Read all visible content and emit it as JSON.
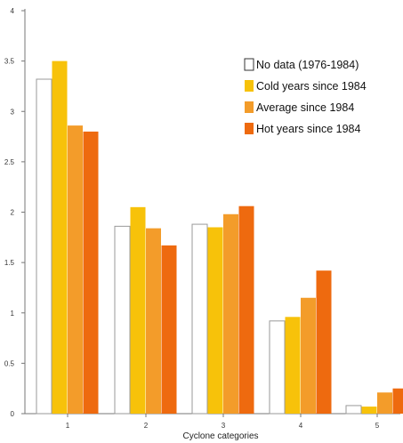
{
  "chart_data": {
    "type": "bar",
    "title": "",
    "xlabel": "Cyclone categories",
    "ylabel": "",
    "categories": [
      "1",
      "2",
      "3",
      "4",
      "5"
    ],
    "ylim": [
      0,
      4
    ],
    "yticks": [
      "0",
      "0.5",
      "1",
      "1.5",
      "2",
      "2.5",
      "3",
      "3.5",
      "4"
    ],
    "legend_position": "top-right",
    "grid": false,
    "series": [
      {
        "name": "No data (1976-1984)",
        "color": "#ffffff",
        "values": [
          3.32,
          1.86,
          1.88,
          0.92,
          0.08
        ]
      },
      {
        "name": "Cold years since 1984",
        "color": "#f7c20a",
        "values": [
          3.5,
          2.05,
          1.85,
          0.96,
          0.07
        ]
      },
      {
        "name": "Average since 1984",
        "color": "#f39c2a",
        "values": [
          2.86,
          1.84,
          1.98,
          1.15,
          0.21
        ]
      },
      {
        "name": "Hot years since 1984",
        "color": "#ee6a0f",
        "values": [
          2.8,
          1.67,
          2.06,
          1.42,
          0.25
        ]
      }
    ]
  }
}
